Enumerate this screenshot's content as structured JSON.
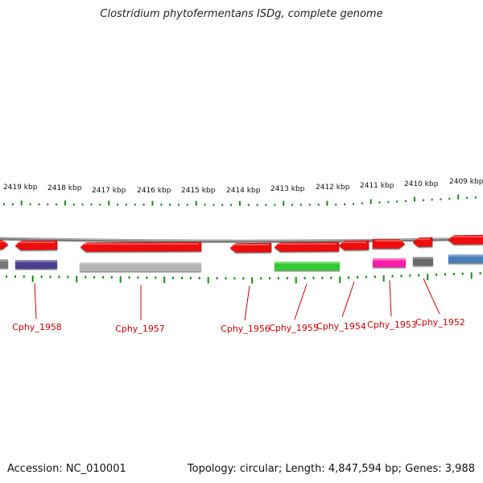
{
  "title": "Clostridium phytofermentans ISDg, complete genome",
  "footer": {
    "accession": "Accession: NC_010001",
    "summary": "Topology: circular; Length: 4,847,594 bp; Genes: 3,988"
  },
  "colors": {
    "tick": "#1a8a1a",
    "backbone": "#7a7a7a",
    "label": "#cc0000",
    "gene_red": "#ee1111"
  },
  "scale_labels": [
    "2419 kbp",
    "2418 kbp",
    "2417 kbp",
    "2416 kbp",
    "2415 kbp",
    "2414 kbp",
    "2413 kbp",
    "2412 kbp",
    "2411 kbp",
    "2410 kbp",
    "2409 kbp"
  ],
  "gene_labels": [
    "Cphy_1958",
    "Cphy_1957",
    "Cphy_1956",
    "Cphy_1955",
    "Cphy_1954",
    "Cphy_1953",
    "Cphy_1952"
  ],
  "outer_features": [
    {
      "strand": "forward",
      "color": "#ee1111"
    },
    {
      "strand": "reverse",
      "color": "#ee1111"
    },
    {
      "strand": "reverse",
      "color": "#ee1111"
    },
    {
      "strand": "reverse",
      "color": "#ee1111"
    },
    {
      "strand": "reverse",
      "color": "#ee1111"
    },
    {
      "strand": "reverse",
      "color": "#ee1111"
    },
    {
      "strand": "forward",
      "color": "#ee1111"
    },
    {
      "strand": "reverse",
      "color": "#ee1111"
    },
    {
      "strand": "reverse",
      "color": "#ee1111"
    }
  ],
  "inner_features": [
    {
      "color": "#777777"
    },
    {
      "color": "#4a3f8f"
    },
    {
      "color": "#b3b3b3"
    },
    {
      "color": "#33cc33"
    },
    {
      "color": "#ff1fa8"
    },
    {
      "color": "#6b6b6b"
    },
    {
      "color": "#4a7fb8"
    }
  ]
}
